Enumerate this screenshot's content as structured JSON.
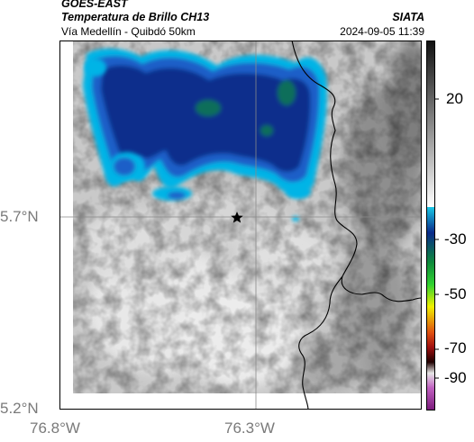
{
  "header": {
    "satellite": "GOES-EAST",
    "product": "Temperatura de Brillo CH13",
    "region": "Vía Medellín - Quibdó 50km",
    "organization": "SIATA",
    "timestamp": "2024-09-05 11:39"
  },
  "map": {
    "lat_ticks": [
      "5.7°N",
      "5.2°N"
    ],
    "lon_ticks": [
      "76.8°W",
      "76.3°W"
    ],
    "marker": "star",
    "colors": {
      "cold_core": "#0a2f8c",
      "cold_mid": "#1460c8",
      "cold_edge": "#00b4e6",
      "embedded": "#0f6e5a",
      "cloud_light": "#e6e6e6",
      "cloud_grey": "#9c9c9c",
      "border_line": "#000000"
    }
  },
  "colorbar": {
    "labels": [
      "20",
      "-30",
      "-50",
      "-70",
      "-90"
    ]
  }
}
